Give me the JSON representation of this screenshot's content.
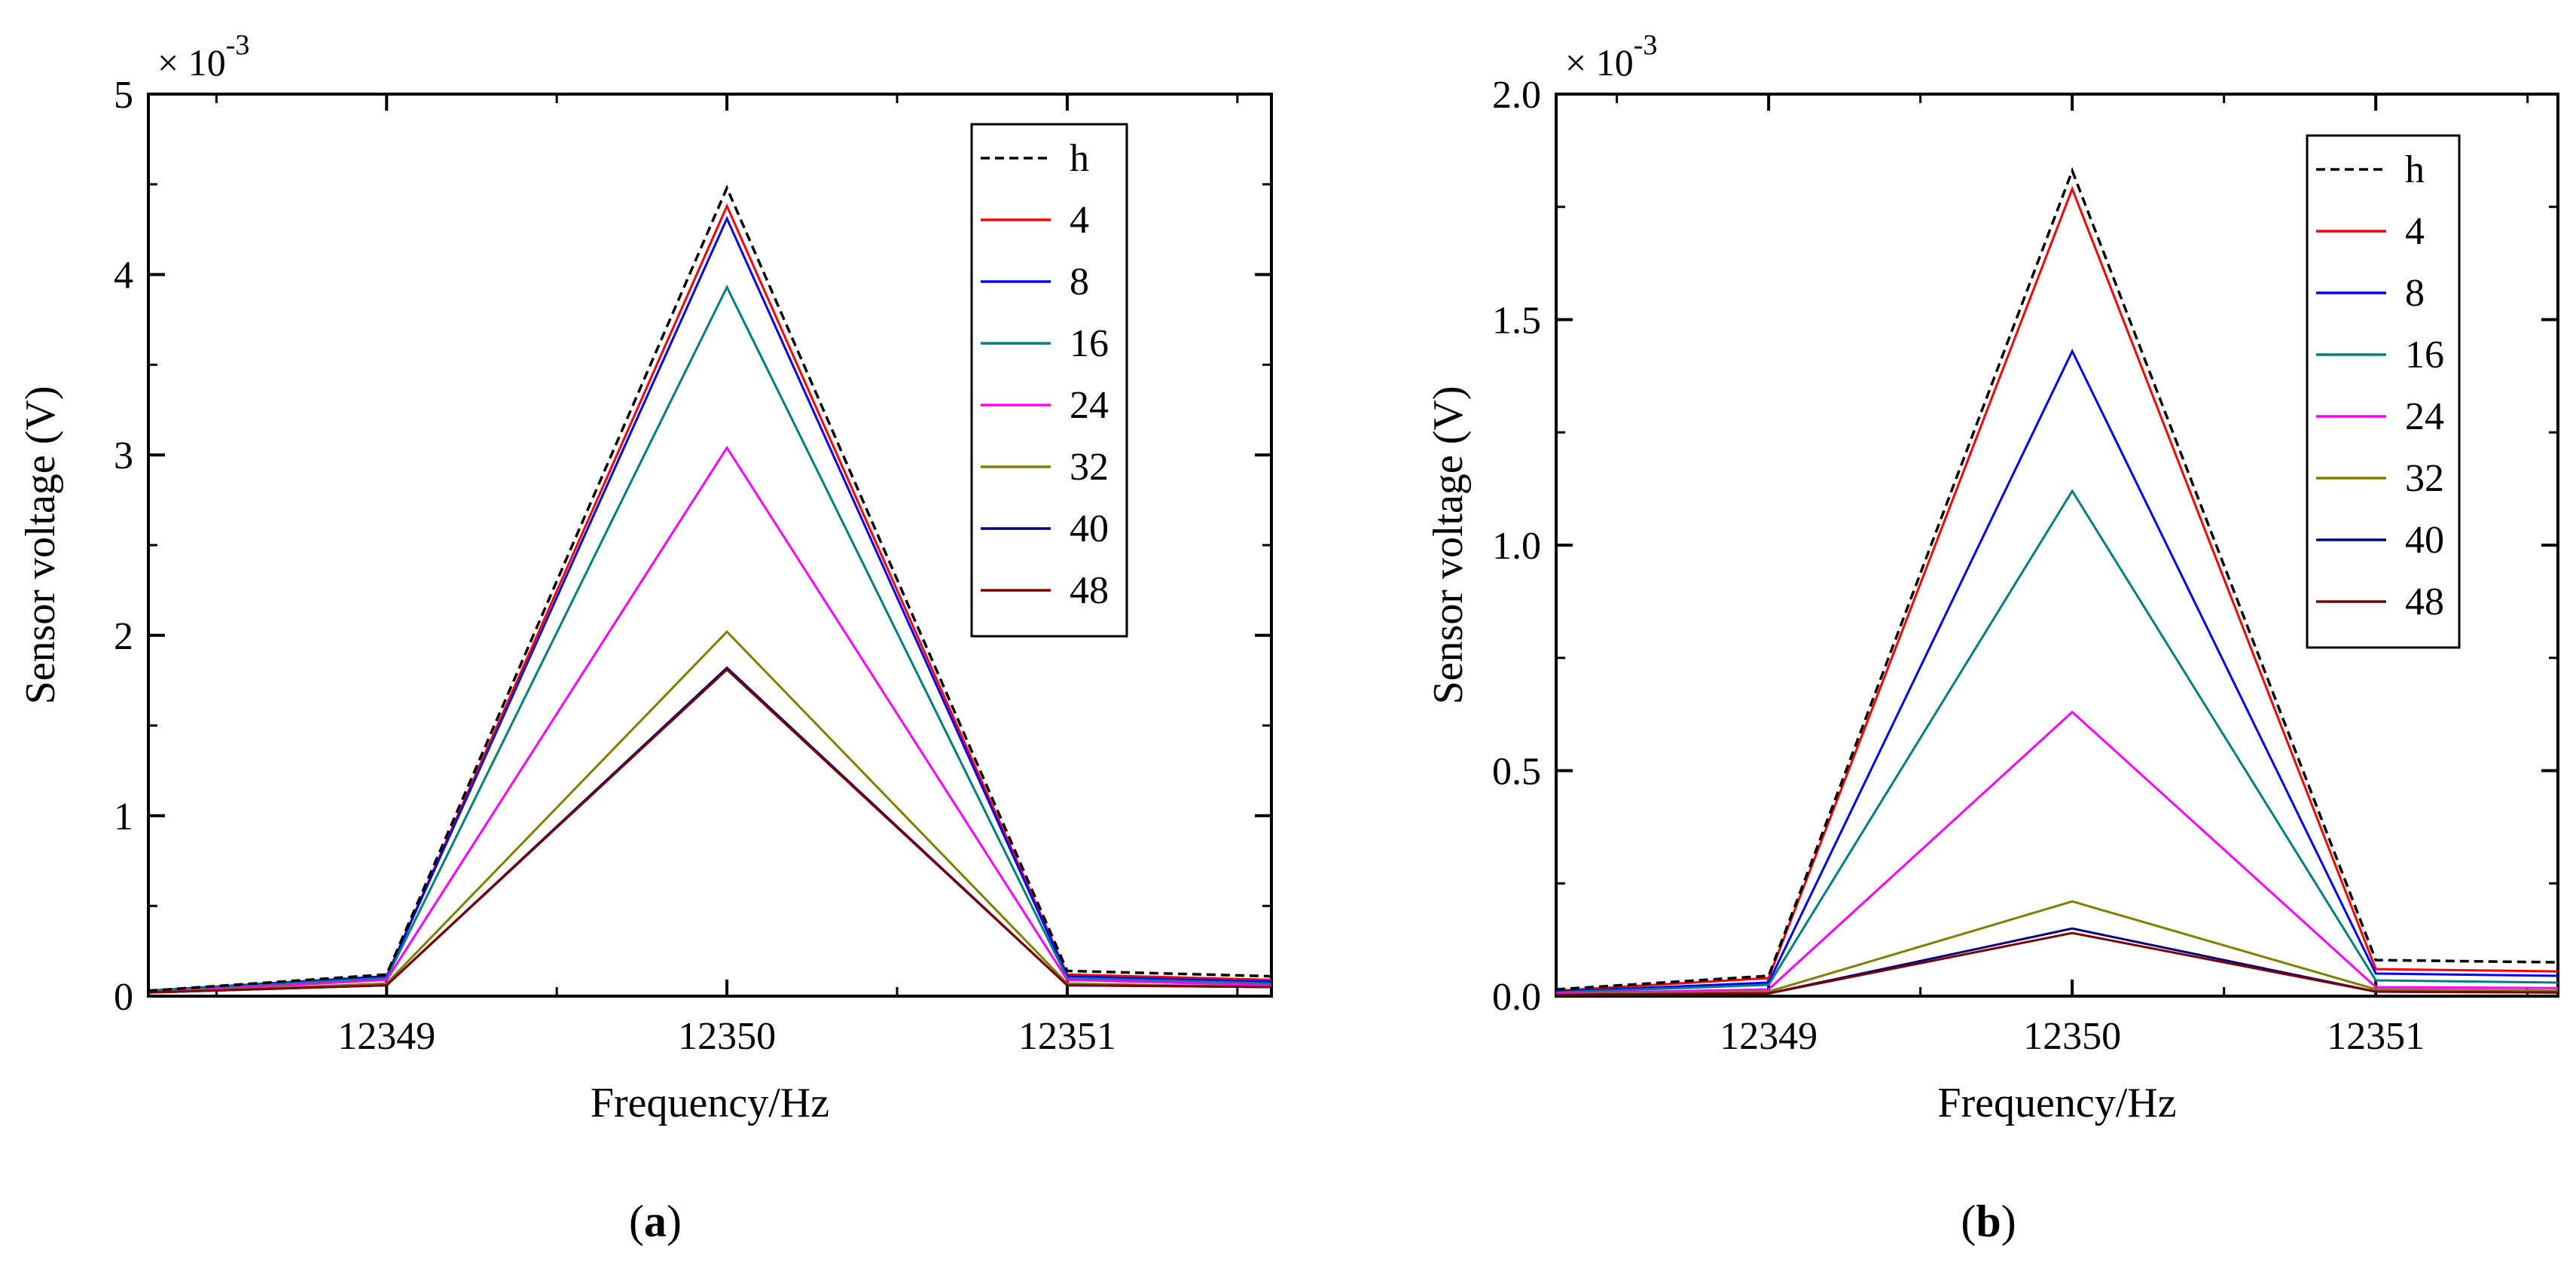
{
  "chart_data": [
    {
      "type": "line",
      "panel_label": "a",
      "xlabel": "Frequency/Hz",
      "ylabel": "Sensor voltage (V)",
      "multiplier": {
        "base": "× 10",
        "exponent": "-3"
      },
      "xlim": [
        12348.3,
        12351.6
      ],
      "ylim": [
        0,
        5
      ],
      "xticks": [
        12349,
        12350,
        12351
      ],
      "xtick_labels": [
        "12349",
        "12350",
        "12351"
      ],
      "yticks": [
        0,
        1,
        2,
        3,
        4,
        5
      ],
      "ytick_labels": [
        "0",
        "1",
        "2",
        "3",
        "4",
        "5"
      ],
      "x": [
        12348.3,
        12349,
        12350,
        12351,
        12351.6
      ],
      "series": [
        {
          "name": "h",
          "color": "#000000",
          "dashed": true,
          "values": [
            0.03,
            0.12,
            4.48,
            0.14,
            0.11
          ]
        },
        {
          "name": "4",
          "color": "#ff0000",
          "dashed": false,
          "values": [
            0.03,
            0.11,
            4.38,
            0.12,
            0.09
          ]
        },
        {
          "name": "8",
          "color": "#0000ff",
          "dashed": false,
          "values": [
            0.03,
            0.11,
            4.31,
            0.11,
            0.08
          ]
        },
        {
          "name": "16",
          "color": "#008080",
          "dashed": false,
          "values": [
            0.03,
            0.1,
            3.93,
            0.1,
            0.07
          ]
        },
        {
          "name": "24",
          "color": "#ff00ff",
          "dashed": false,
          "values": [
            0.02,
            0.09,
            3.04,
            0.09,
            0.06
          ]
        },
        {
          "name": "32",
          "color": "#808000",
          "dashed": false,
          "values": [
            0.02,
            0.07,
            2.02,
            0.07,
            0.05
          ]
        },
        {
          "name": "40",
          "color": "#000080",
          "dashed": false,
          "values": [
            0.02,
            0.06,
            1.82,
            0.06,
            0.05
          ]
        },
        {
          "name": "48",
          "color": "#800000",
          "dashed": false,
          "values": [
            0.02,
            0.06,
            1.81,
            0.06,
            0.05
          ]
        }
      ]
    },
    {
      "type": "line",
      "panel_label": "b",
      "xlabel": "Frequency/Hz",
      "ylabel": "Sensor voltage (V)",
      "multiplier": {
        "base": "× 10",
        "exponent": "-3"
      },
      "xlim": [
        12348.3,
        12351.6
      ],
      "ylim": [
        0,
        2.0
      ],
      "xticks": [
        12349,
        12350,
        12351
      ],
      "xtick_labels": [
        "12349",
        "12350",
        "12351"
      ],
      "yticks": [
        0,
        0.5,
        1.0,
        1.5,
        2.0
      ],
      "ytick_labels": [
        "0.0",
        "0.5",
        "1.0",
        "1.5",
        "2.0"
      ],
      "x": [
        12348.3,
        12349,
        12350,
        12351,
        12351.6
      ],
      "series": [
        {
          "name": "h",
          "color": "#000000",
          "dashed": true,
          "values": [
            0.015,
            0.045,
            1.83,
            0.08,
            0.075
          ]
        },
        {
          "name": "4",
          "color": "#ff0000",
          "dashed": false,
          "values": [
            0.012,
            0.04,
            1.79,
            0.06,
            0.055
          ]
        },
        {
          "name": "8",
          "color": "#0000ff",
          "dashed": false,
          "values": [
            0.01,
            0.03,
            1.43,
            0.05,
            0.045
          ]
        },
        {
          "name": "16",
          "color": "#008080",
          "dashed": false,
          "values": [
            0.008,
            0.025,
            1.12,
            0.035,
            0.03
          ]
        },
        {
          "name": "24",
          "color": "#ff00ff",
          "dashed": false,
          "values": [
            0.006,
            0.015,
            0.63,
            0.02,
            0.018
          ]
        },
        {
          "name": "32",
          "color": "#808000",
          "dashed": false,
          "values": [
            0.004,
            0.01,
            0.21,
            0.015,
            0.012
          ]
        },
        {
          "name": "40",
          "color": "#000080",
          "dashed": false,
          "values": [
            0.003,
            0.006,
            0.15,
            0.01,
            0.008
          ]
        },
        {
          "name": "48",
          "color": "#800000",
          "dashed": false,
          "values": [
            0.003,
            0.006,
            0.14,
            0.01,
            0.008
          ]
        }
      ]
    }
  ]
}
